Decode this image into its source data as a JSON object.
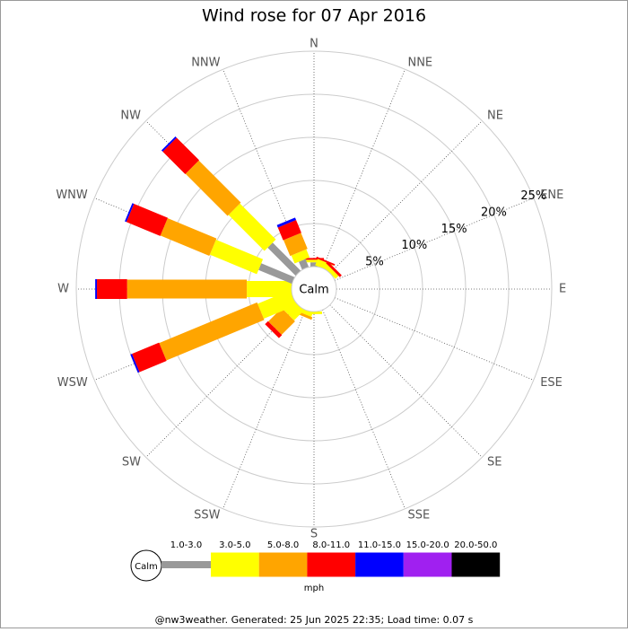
{
  "chart_data": {
    "type": "windrose",
    "title": "Wind rose for 07 Apr 2016",
    "categories": [
      "N",
      "NNE",
      "NE",
      "ENE",
      "E",
      "ESE",
      "SE",
      "SSE",
      "S",
      "SSW",
      "SW",
      "WSW",
      "W",
      "WNW",
      "NW",
      "NNW"
    ],
    "calm_label": "Calm",
    "legend_unit": "mph",
    "footer": "@nw3weather. Generated: 25 Jun 2025 22:35; Load time: 0.07 s",
    "rlim": [
      0,
      25
    ],
    "rticks": [
      {
        "value": 5,
        "label": "5%"
      },
      {
        "value": 10,
        "label": "10%"
      },
      {
        "value": 15,
        "label": "15%"
      },
      {
        "value": 20,
        "label": "20%"
      },
      {
        "value": 25,
        "label": "25%"
      }
    ],
    "series": [
      {
        "name": "1.0-3.0",
        "color": "#999999",
        "values": [
          0.5,
          0,
          0,
          0,
          0,
          0,
          0,
          0,
          0,
          0,
          0,
          0,
          0,
          4.2,
          4.6,
          1.0
        ]
      },
      {
        "name": "3.0-5.0",
        "color": "#ffff00",
        "values": [
          0.3,
          0.8,
          0.5,
          0,
          0,
          0,
          0,
          0,
          0.3,
          0.5,
          1.6,
          4.1,
          5.2,
          5.9,
          5.9,
          1.0
        ]
      },
      {
        "name": "5.0-8.0",
        "color": "#ffa500",
        "values": [
          0,
          0,
          0,
          0,
          0,
          0,
          0,
          0,
          0,
          0.3,
          2.2,
          12.3,
          13.9,
          6.15,
          6.9,
          2.0
        ]
      },
      {
        "name": "8.0-11.0",
        "color": "#ff0000",
        "values": [
          0.2,
          0.2,
          0.3,
          0,
          0,
          0,
          0,
          0,
          0,
          0,
          0.5,
          3.4,
          3.5,
          4.25,
          3.7,
          1.6
        ]
      },
      {
        "name": "11.0-15.0",
        "color": "#0000ff",
        "values": [
          0,
          0,
          0,
          0,
          0,
          0,
          0,
          0,
          0,
          0,
          0,
          0.2,
          0.2,
          0.2,
          0.2,
          0.3
        ]
      },
      {
        "name": "15.0-20.0",
        "color": "#a020f0",
        "values": [
          0,
          0,
          0,
          0,
          0,
          0,
          0,
          0,
          0,
          0,
          0,
          0,
          0,
          0,
          0,
          0
        ]
      },
      {
        "name": "20.0-50.0",
        "color": "#000000",
        "values": [
          0,
          0,
          0,
          0,
          0,
          0,
          0,
          0,
          0,
          0,
          0,
          0,
          0,
          0,
          0,
          0
        ]
      }
    ]
  }
}
